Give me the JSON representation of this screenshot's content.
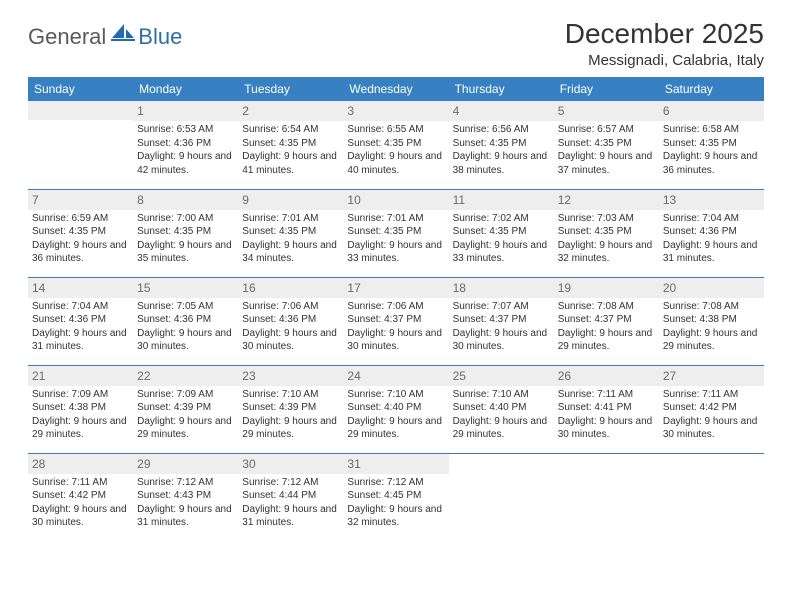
{
  "brand": {
    "general": "General",
    "blue": "Blue"
  },
  "title": "December 2025",
  "location": "Messignadi, Calabria, Italy",
  "colors": {
    "header_bg": "#3781c2",
    "header_text": "#ffffff",
    "daynum_bg": "#eeeeee",
    "daynum_text": "#6a6a6a",
    "body_text": "#333333",
    "divider": "#3b7fb8",
    "logo_gray": "#5a5a5a",
    "logo_blue": "#2f6fa8"
  },
  "daysOfWeek": [
    "Sunday",
    "Monday",
    "Tuesday",
    "Wednesday",
    "Thursday",
    "Friday",
    "Saturday"
  ],
  "weeks": [
    [
      {
        "num": "",
        "text": ""
      },
      {
        "num": "1",
        "text": "Sunrise: 6:53 AM\nSunset: 4:36 PM\nDaylight: 9 hours and 42 minutes."
      },
      {
        "num": "2",
        "text": "Sunrise: 6:54 AM\nSunset: 4:35 PM\nDaylight: 9 hours and 41 minutes."
      },
      {
        "num": "3",
        "text": "Sunrise: 6:55 AM\nSunset: 4:35 PM\nDaylight: 9 hours and 40 minutes."
      },
      {
        "num": "4",
        "text": "Sunrise: 6:56 AM\nSunset: 4:35 PM\nDaylight: 9 hours and 38 minutes."
      },
      {
        "num": "5",
        "text": "Sunrise: 6:57 AM\nSunset: 4:35 PM\nDaylight: 9 hours and 37 minutes."
      },
      {
        "num": "6",
        "text": "Sunrise: 6:58 AM\nSunset: 4:35 PM\nDaylight: 9 hours and 36 minutes."
      }
    ],
    [
      {
        "num": "7",
        "text": "Sunrise: 6:59 AM\nSunset: 4:35 PM\nDaylight: 9 hours and 36 minutes."
      },
      {
        "num": "8",
        "text": "Sunrise: 7:00 AM\nSunset: 4:35 PM\nDaylight: 9 hours and 35 minutes."
      },
      {
        "num": "9",
        "text": "Sunrise: 7:01 AM\nSunset: 4:35 PM\nDaylight: 9 hours and 34 minutes."
      },
      {
        "num": "10",
        "text": "Sunrise: 7:01 AM\nSunset: 4:35 PM\nDaylight: 9 hours and 33 minutes."
      },
      {
        "num": "11",
        "text": "Sunrise: 7:02 AM\nSunset: 4:35 PM\nDaylight: 9 hours and 33 minutes."
      },
      {
        "num": "12",
        "text": "Sunrise: 7:03 AM\nSunset: 4:35 PM\nDaylight: 9 hours and 32 minutes."
      },
      {
        "num": "13",
        "text": "Sunrise: 7:04 AM\nSunset: 4:36 PM\nDaylight: 9 hours and 31 minutes."
      }
    ],
    [
      {
        "num": "14",
        "text": "Sunrise: 7:04 AM\nSunset: 4:36 PM\nDaylight: 9 hours and 31 minutes."
      },
      {
        "num": "15",
        "text": "Sunrise: 7:05 AM\nSunset: 4:36 PM\nDaylight: 9 hours and 30 minutes."
      },
      {
        "num": "16",
        "text": "Sunrise: 7:06 AM\nSunset: 4:36 PM\nDaylight: 9 hours and 30 minutes."
      },
      {
        "num": "17",
        "text": "Sunrise: 7:06 AM\nSunset: 4:37 PM\nDaylight: 9 hours and 30 minutes."
      },
      {
        "num": "18",
        "text": "Sunrise: 7:07 AM\nSunset: 4:37 PM\nDaylight: 9 hours and 30 minutes."
      },
      {
        "num": "19",
        "text": "Sunrise: 7:08 AM\nSunset: 4:37 PM\nDaylight: 9 hours and 29 minutes."
      },
      {
        "num": "20",
        "text": "Sunrise: 7:08 AM\nSunset: 4:38 PM\nDaylight: 9 hours and 29 minutes."
      }
    ],
    [
      {
        "num": "21",
        "text": "Sunrise: 7:09 AM\nSunset: 4:38 PM\nDaylight: 9 hours and 29 minutes."
      },
      {
        "num": "22",
        "text": "Sunrise: 7:09 AM\nSunset: 4:39 PM\nDaylight: 9 hours and 29 minutes."
      },
      {
        "num": "23",
        "text": "Sunrise: 7:10 AM\nSunset: 4:39 PM\nDaylight: 9 hours and 29 minutes."
      },
      {
        "num": "24",
        "text": "Sunrise: 7:10 AM\nSunset: 4:40 PM\nDaylight: 9 hours and 29 minutes."
      },
      {
        "num": "25",
        "text": "Sunrise: 7:10 AM\nSunset: 4:40 PM\nDaylight: 9 hours and 29 minutes."
      },
      {
        "num": "26",
        "text": "Sunrise: 7:11 AM\nSunset: 4:41 PM\nDaylight: 9 hours and 30 minutes."
      },
      {
        "num": "27",
        "text": "Sunrise: 7:11 AM\nSunset: 4:42 PM\nDaylight: 9 hours and 30 minutes."
      }
    ],
    [
      {
        "num": "28",
        "text": "Sunrise: 7:11 AM\nSunset: 4:42 PM\nDaylight: 9 hours and 30 minutes."
      },
      {
        "num": "29",
        "text": "Sunrise: 7:12 AM\nSunset: 4:43 PM\nDaylight: 9 hours and 31 minutes."
      },
      {
        "num": "30",
        "text": "Sunrise: 7:12 AM\nSunset: 4:44 PM\nDaylight: 9 hours and 31 minutes."
      },
      {
        "num": "31",
        "text": "Sunrise: 7:12 AM\nSunset: 4:45 PM\nDaylight: 9 hours and 32 minutes."
      },
      {
        "num": "",
        "text": ""
      },
      {
        "num": "",
        "text": ""
      },
      {
        "num": "",
        "text": ""
      }
    ]
  ]
}
